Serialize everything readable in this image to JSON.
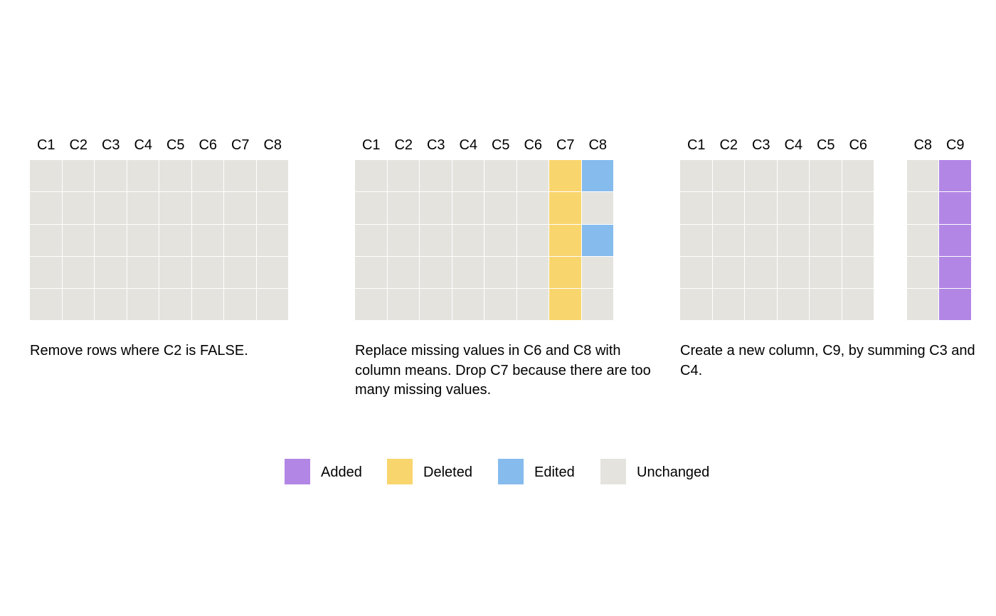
{
  "colors": {
    "Added": "#b286e5",
    "Deleted": "#f9d56e",
    "Edited": "#86bbee",
    "Unchanged": "#e4e3de"
  },
  "panels": [
    {
      "headers": [
        "C1",
        "C2",
        "C3",
        "C4",
        "C5",
        "C6",
        "C7",
        "C8"
      ],
      "columns": [
        [
          "Unchanged",
          "Unchanged",
          "Unchanged",
          "Unchanged",
          "Unchanged"
        ],
        [
          "Unchanged",
          "Unchanged",
          "Unchanged",
          "Unchanged",
          "Unchanged"
        ],
        [
          "Unchanged",
          "Unchanged",
          "Unchanged",
          "Unchanged",
          "Unchanged"
        ],
        [
          "Unchanged",
          "Unchanged",
          "Unchanged",
          "Unchanged",
          "Unchanged"
        ],
        [
          "Unchanged",
          "Unchanged",
          "Unchanged",
          "Unchanged",
          "Unchanged"
        ],
        [
          "Unchanged",
          "Unchanged",
          "Unchanged",
          "Unchanged",
          "Unchanged"
        ],
        [
          "Unchanged",
          "Unchanged",
          "Unchanged",
          "Unchanged",
          "Unchanged"
        ],
        [
          "Unchanged",
          "Unchanged",
          "Unchanged",
          "Unchanged",
          "Unchanged"
        ]
      ],
      "description": "Remove rows where C2 is FALSE."
    },
    {
      "headers": [
        "C1",
        "C2",
        "C3",
        "C4",
        "C5",
        "C6",
        "C7",
        "C8"
      ],
      "columns": [
        [
          "Unchanged",
          "Unchanged",
          "Unchanged",
          "Unchanged",
          "Unchanged"
        ],
        [
          "Unchanged",
          "Unchanged",
          "Unchanged",
          "Unchanged",
          "Unchanged"
        ],
        [
          "Unchanged",
          "Unchanged",
          "Unchanged",
          "Unchanged",
          "Unchanged"
        ],
        [
          "Unchanged",
          "Unchanged",
          "Unchanged",
          "Unchanged",
          "Unchanged"
        ],
        [
          "Unchanged",
          "Unchanged",
          "Unchanged",
          "Unchanged",
          "Unchanged"
        ],
        [
          "Unchanged",
          "Unchanged",
          "Unchanged",
          "Unchanged",
          "Unchanged"
        ],
        [
          "Deleted",
          "Deleted",
          "Deleted",
          "Deleted",
          "Deleted"
        ],
        [
          "Edited",
          "Unchanged",
          "Edited",
          "Unchanged",
          "Unchanged"
        ]
      ],
      "description": "Replace missing values in C6 and C8 with column means. Drop C7 because there are too many missing values."
    },
    {
      "headers": [
        "C1",
        "C2",
        "C3",
        "C4",
        "C5",
        "C6",
        "",
        "C8",
        "C9"
      ],
      "columns": [
        [
          "Unchanged",
          "Unchanged",
          "Unchanged",
          "Unchanged",
          "Unchanged"
        ],
        [
          "Unchanged",
          "Unchanged",
          "Unchanged",
          "Unchanged",
          "Unchanged"
        ],
        [
          "Unchanged",
          "Unchanged",
          "Unchanged",
          "Unchanged",
          "Unchanged"
        ],
        [
          "Unchanged",
          "Unchanged",
          "Unchanged",
          "Unchanged",
          "Unchanged"
        ],
        [
          "Unchanged",
          "Unchanged",
          "Unchanged",
          "Unchanged",
          "Unchanged"
        ],
        [
          "Unchanged",
          "Unchanged",
          "Unchanged",
          "Unchanged",
          "Unchanged"
        ],
        [],
        [
          "Unchanged",
          "Unchanged",
          "Unchanged",
          "Unchanged",
          "Unchanged"
        ],
        [
          "Added",
          "Added",
          "Added",
          "Added",
          "Added"
        ]
      ],
      "description": "Create a new column, C9, by summing C3 and C4."
    }
  ],
  "legend": [
    {
      "label": "Added",
      "status": "Added"
    },
    {
      "label": "Deleted",
      "status": "Deleted"
    },
    {
      "label": "Edited",
      "status": "Edited"
    },
    {
      "label": "Unchanged",
      "status": "Unchanged"
    }
  ]
}
